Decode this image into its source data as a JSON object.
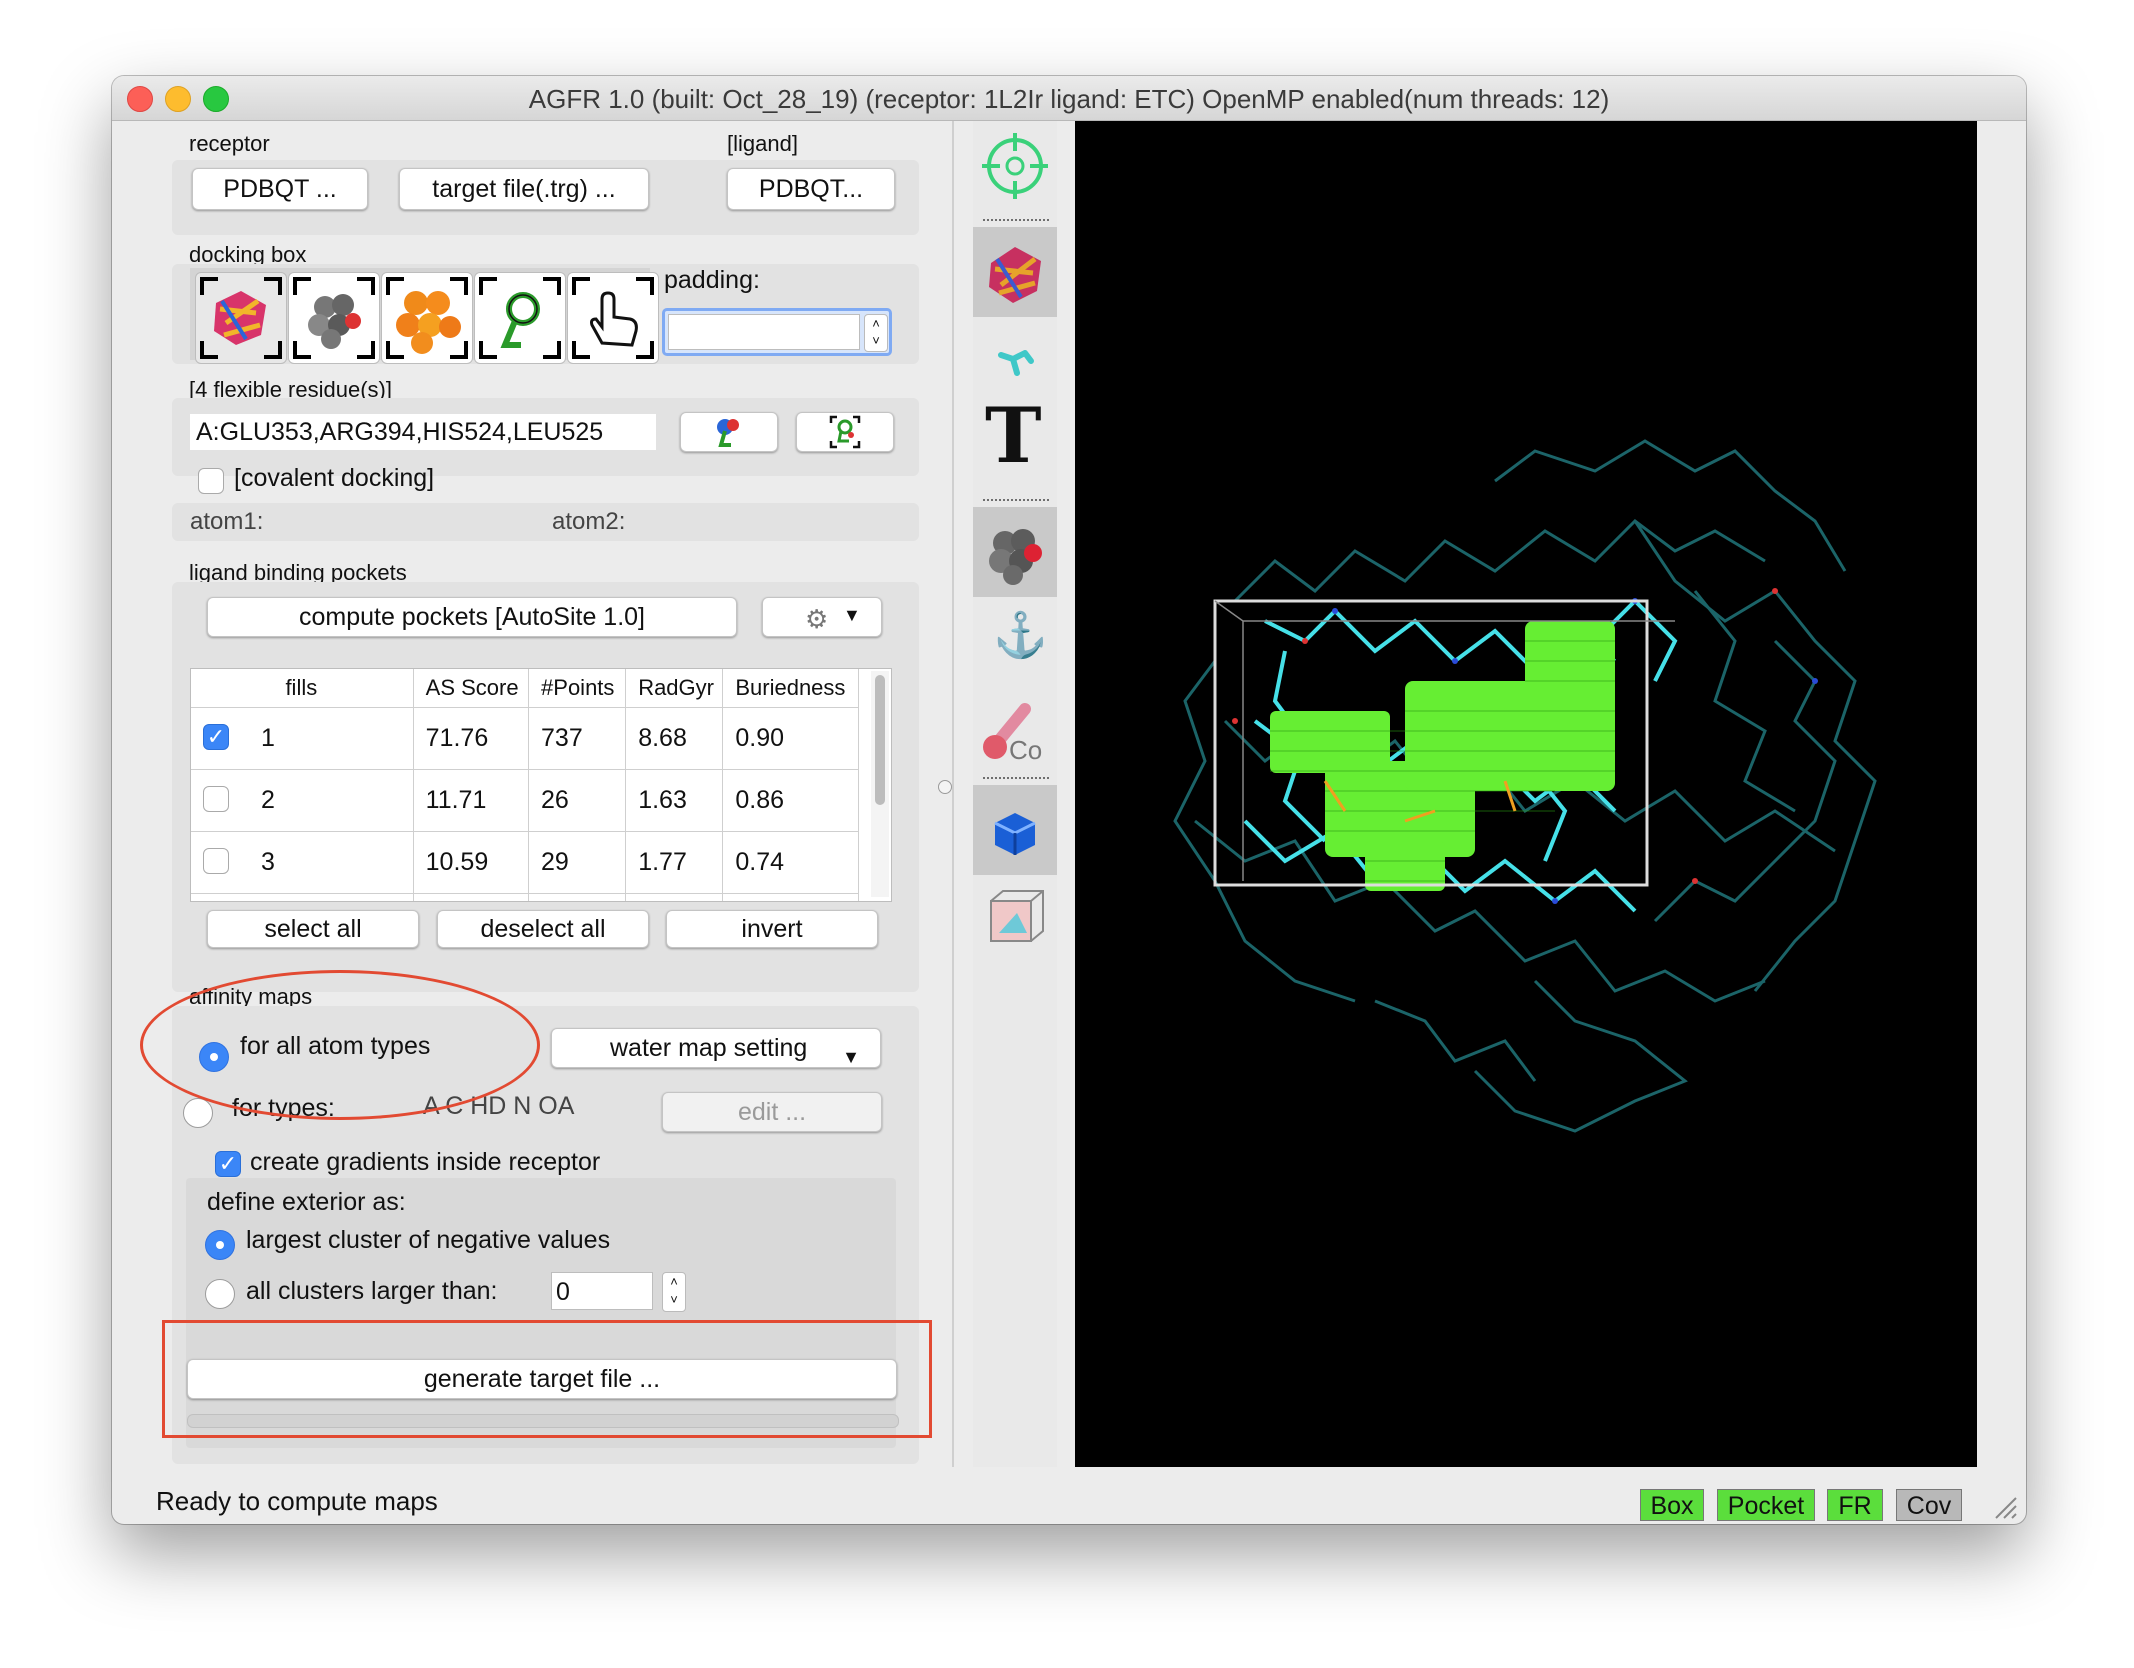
{
  "window": {
    "title": "AGFR 1.0 (built: Oct_28_19) (receptor: 1L2Ir ligand: ETC) OpenMP enabled(num threads: 12)"
  },
  "receptor": {
    "label": "receptor",
    "pdbqt_button": "PDBQT ...",
    "target_button": "target file(.trg) ..."
  },
  "ligand": {
    "label": "[ligand]",
    "pdbqt_button": "PDBQT..."
  },
  "docking_box": {
    "label": "docking box",
    "padding_label": "padding:",
    "padding_value": ""
  },
  "flex": {
    "label": "[4 flexible residue(s)]",
    "value": "A:GLU353,ARG394,HIS524,LEU525"
  },
  "covalent": {
    "label": "[covalent docking]",
    "atom1": "atom1:",
    "atom2": "atom2:"
  },
  "pockets": {
    "label": "ligand binding pockets",
    "compute_button": "compute pockets [AutoSite 1.0]",
    "columns": [
      "fills",
      "AS Score",
      "#Points",
      "RadGyr",
      "Buriedness"
    ],
    "rows": [
      {
        "fill": "1",
        "score": "71.76",
        "points": "737",
        "radgyr": "8.68",
        "buried": "0.90",
        "checked": true
      },
      {
        "fill": "2",
        "score": "11.71",
        "points": "26",
        "radgyr": "1.63",
        "buried": "0.86",
        "checked": false
      },
      {
        "fill": "3",
        "score": "10.59",
        "points": "29",
        "radgyr": "1.77",
        "buried": "0.74",
        "checked": false
      }
    ],
    "select_all": "select all",
    "deselect_all": "deselect all",
    "invert": "invert"
  },
  "affinity": {
    "label": "affinity maps",
    "all_types": "for all atom types",
    "water_setting": "water map setting",
    "for_types": "for types:",
    "types_value": "A C HD N OA",
    "edit_button": "edit ...",
    "gradients": "create gradients inside receptor",
    "define_exterior": "define exterior as:",
    "largest_cluster": "largest cluster of negative values",
    "all_clusters": "all clusters larger than:",
    "cluster_value": "0"
  },
  "generate_button": "generate target file ...",
  "status": {
    "text": "Ready to compute maps",
    "badges": [
      {
        "label": "Box",
        "color": "#5bde3c"
      },
      {
        "label": "Pocket",
        "color": "#5bde3c"
      },
      {
        "label": "FR",
        "color": "#5bde3c"
      },
      {
        "label": "Cov",
        "color": "#b8b8b8"
      }
    ]
  },
  "sidebar_icons": [
    "crosshair-icon",
    "receptor-icon",
    "ligand-icon",
    "text-icon",
    "atoms-icon",
    "anchor-icon",
    "covalent-icon",
    "box-icon",
    "wireframe-box-icon"
  ]
}
